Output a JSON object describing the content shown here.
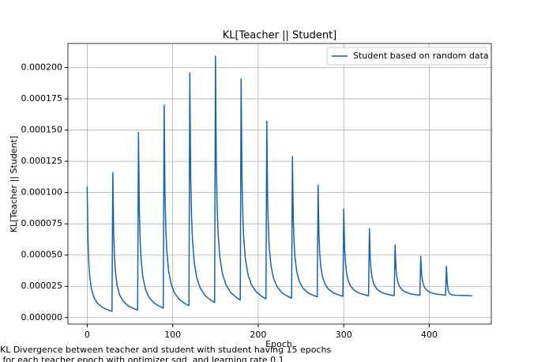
{
  "chart_data": {
    "type": "line",
    "title": "KL[Teacher || Student]",
    "xlabel": "Epoch",
    "ylabel": "KL[Teacher || Student]",
    "caption": [
      "KL Divergence between teacher and student  with student having 15 epochs",
      " for each teacher epoch with optimizer sgd  and learning rate 0.1"
    ],
    "legend": "upper right",
    "grid": true,
    "xlim": [
      -22.5,
      472.5
    ],
    "xticks": [
      0,
      100,
      200,
      300,
      400
    ],
    "ylim": [
      -5.2e-06,
      0.0002193
    ],
    "yticks": [
      {
        "value": 0,
        "label": "0.000000"
      },
      {
        "value": 2.5e-05,
        "label": "0.000025"
      },
      {
        "value": 5e-05,
        "label": "0.000050"
      },
      {
        "value": 7.5e-05,
        "label": "0.000075"
      },
      {
        "value": 0.0001,
        "label": "0.000100"
      },
      {
        "value": 0.000125,
        "label": "0.000125"
      },
      {
        "value": 0.00015,
        "label": "0.000150"
      },
      {
        "value": 0.000175,
        "label": "0.000175"
      },
      {
        "value": 0.0002,
        "label": "0.000200"
      }
    ],
    "x": [
      0,
      1,
      2,
      3,
      5,
      8,
      12,
      18,
      24,
      29,
      30,
      31,
      32,
      33,
      35,
      38,
      42,
      48,
      54,
      59,
      60,
      61,
      62,
      63,
      65,
      68,
      72,
      78,
      84,
      89,
      90,
      91,
      92,
      93,
      95,
      98,
      102,
      108,
      114,
      119,
      120,
      121,
      122,
      123,
      125,
      128,
      132,
      138,
      144,
      149,
      150,
      151,
      152,
      153,
      155,
      158,
      162,
      168,
      174,
      179,
      180,
      181,
      182,
      183,
      185,
      188,
      192,
      198,
      204,
      209,
      210,
      211,
      212,
      213,
      215,
      218,
      222,
      228,
      234,
      239,
      240,
      241,
      242,
      243,
      245,
      248,
      252,
      258,
      264,
      269,
      270,
      271,
      272,
      273,
      275,
      278,
      282,
      288,
      294,
      299,
      300,
      301,
      302,
      303,
      305,
      308,
      312,
      318,
      324,
      329,
      330,
      331,
      332,
      333,
      335,
      338,
      342,
      348,
      354,
      359,
      360,
      361,
      362,
      363,
      365,
      368,
      372,
      378,
      384,
      389,
      390,
      391,
      392,
      393,
      395,
      398,
      402,
      408,
      414,
      419,
      420,
      421,
      422,
      423,
      425,
      428,
      432,
      438,
      444,
      449,
      450
    ],
    "series": [
      {
        "name": "Student based on random data",
        "color": "#1764ab",
        "values": [
          0.000105,
          6e-05,
          4.3e-05,
          3.3e-05,
          2.3e-05,
          1.6e-05,
          1.15e-05,
          8e-06,
          6.2e-06,
          5e-06,
          0.000116,
          6.65e-05,
          4.78e-05,
          3.68e-05,
          2.58e-05,
          1.81e-05,
          1.32e-05,
          9.3e-06,
          7.3e-06,
          6e-06,
          0.000148,
          8.48e-05,
          6.09e-05,
          4.68e-05,
          3.28e-05,
          2.3e-05,
          1.66e-05,
          1.17e-05,
          9.2e-06,
          7.5e-06,
          0.00017,
          9.78e-05,
          7.05e-05,
          5.44e-05,
          3.84e-05,
          2.72e-05,
          1.99e-05,
          1.43e-05,
          1.14e-05,
          9.5e-06,
          0.000196,
          0.0001132,
          8.19e-05,
          6.35e-05,
          4.51e-05,
          3.22e-05,
          2.4e-05,
          1.75e-05,
          1.42e-05,
          1.2e-05,
          0.000209,
          0.0001213,
          8.81e-05,
          6.86e-05,
          4.91e-05,
          3.55e-05,
          2.67e-05,
          1.99e-05,
          1.63e-05,
          1.4e-05,
          0.000191,
          0.0001118,
          8.19e-05,
          6.43e-05,
          4.67e-05,
          3.44e-05,
          2.64e-05,
          2.03e-05,
          1.71e-05,
          1.5e-05,
          0.000157,
          9.33e-05,
          6.93e-05,
          5.51e-05,
          4.1e-05,
          3.11e-05,
          2.47e-05,
          1.97e-05,
          1.72e-05,
          1.55e-05,
          0.000129,
          7.84e-05,
          5.93e-05,
          4.8e-05,
          3.68e-05,
          2.89e-05,
          2.38e-05,
          1.99e-05,
          1.79e-05,
          1.65e-05,
          0.000106,
          6.6e-05,
          5.08e-05,
          4.19e-05,
          3.3e-05,
          2.68e-05,
          2.28e-05,
          1.97e-05,
          1.81e-05,
          1.7e-05,
          8.7e-05,
          5.57e-05,
          4.39e-05,
          3.7e-05,
          3e-05,
          2.51e-05,
          2.2e-05,
          1.96e-05,
          1.83e-05,
          1.75e-05,
          7.1e-05,
          4.69e-05,
          3.78e-05,
          3.25e-05,
          2.71e-05,
          2.34e-05,
          2.1e-05,
          1.91e-05,
          1.81e-05,
          1.75e-05,
          5.8e-05,
          3.99e-05,
          3.31e-05,
          2.9e-05,
          2.5e-05,
          2.22e-05,
          2.04e-05,
          1.9e-05,
          1.83e-05,
          1.78e-05,
          4.9e-05,
          3.5e-05,
          2.97e-05,
          2.66e-05,
          2.35e-05,
          2.13e-05,
          1.99e-05,
          1.88e-05,
          1.83e-05,
          1.79e-05,
          4.1e-05,
          2.8e-05,
          2.2e-05,
          2e-05,
          1.85e-05,
          1.8e-05,
          1.78e-05,
          1.77e-05,
          1.76e-05,
          1.75e-05,
          1.72e-05
        ]
      }
    ]
  }
}
